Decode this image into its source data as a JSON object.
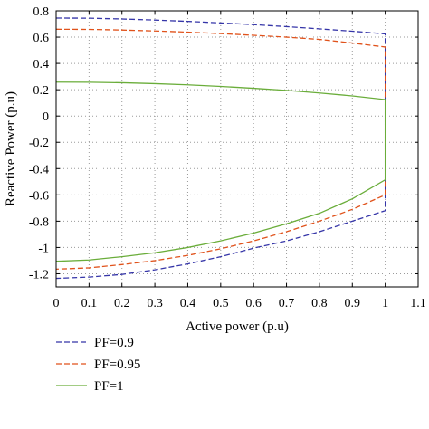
{
  "chart_data": {
    "type": "line",
    "xlabel": "Active power (p.u)",
    "ylabel": "Reactive Power (p.u)",
    "xlim": [
      0,
      1.1
    ],
    "ylim": [
      -1.3,
      0.8
    ],
    "xticks": [
      0,
      0.1,
      0.2,
      0.3,
      0.4,
      0.5,
      0.6,
      0.7,
      0.8,
      0.9,
      1,
      1.1
    ],
    "xtick_labels": [
      "0",
      "0.1",
      "0.2",
      "0.3",
      "0.4",
      "0.5",
      "0.6",
      "0.7",
      "0.8",
      "0.9",
      "1",
      "1.1"
    ],
    "yticks": [
      -1.2,
      -1,
      -0.8,
      -0.6,
      -0.4,
      -0.2,
      0,
      0.2,
      0.4,
      0.6,
      0.8
    ],
    "ytick_labels": [
      "-1.2",
      "-1",
      "-0.8",
      "-0.6",
      "-0.4",
      "-0.2",
      "0",
      "0.2",
      "0.4",
      "0.6",
      "0.8"
    ],
    "grid": true,
    "legend_position": "bottom-left-outside",
    "series": [
      {
        "name": "PF=0.9",
        "color": "#3535a8",
        "dash": "dashed",
        "upper": {
          "x": [
            0,
            0.1,
            0.2,
            0.3,
            0.4,
            0.5,
            0.6,
            0.7,
            0.8,
            0.9,
            1.0
          ],
          "y": [
            0.745,
            0.744,
            0.738,
            0.73,
            0.72,
            0.708,
            0.695,
            0.68,
            0.663,
            0.645,
            0.625
          ]
        },
        "lower": {
          "x": [
            0,
            0.1,
            0.2,
            0.3,
            0.4,
            0.5,
            0.6,
            0.7,
            0.8,
            0.9,
            1.0
          ],
          "y": [
            -1.235,
            -1.225,
            -1.205,
            -1.17,
            -1.125,
            -1.07,
            -1.005,
            -0.95,
            -0.88,
            -0.8,
            -0.72
          ]
        },
        "vertical_x": 1.0
      },
      {
        "name": "PF=0.95",
        "color": "#e0521b",
        "dash": "dashed",
        "upper": {
          "x": [
            0,
            0.1,
            0.2,
            0.3,
            0.4,
            0.5,
            0.6,
            0.7,
            0.8,
            0.9,
            1.0
          ],
          "y": [
            0.66,
            0.659,
            0.654,
            0.647,
            0.638,
            0.627,
            0.614,
            0.6,
            0.583,
            0.555,
            0.525
          ]
        },
        "lower": {
          "x": [
            0,
            0.1,
            0.2,
            0.3,
            0.4,
            0.5,
            0.6,
            0.7,
            0.8,
            0.9,
            1.0
          ],
          "y": [
            -1.165,
            -1.155,
            -1.13,
            -1.1,
            -1.06,
            -1.01,
            -0.95,
            -0.88,
            -0.8,
            -0.71,
            -0.6
          ]
        },
        "vertical_x": 1.0
      },
      {
        "name": "PF=1",
        "color": "#6aad3a",
        "dash": "solid",
        "upper": {
          "x": [
            0,
            0.1,
            0.2,
            0.3,
            0.4,
            0.5,
            0.6,
            0.7,
            0.8,
            0.9,
            1.0
          ],
          "y": [
            0.258,
            0.257,
            0.253,
            0.246,
            0.237,
            0.225,
            0.211,
            0.195,
            0.175,
            0.153,
            0.125
          ]
        },
        "lower": {
          "x": [
            0,
            0.1,
            0.2,
            0.3,
            0.4,
            0.5,
            0.6,
            0.7,
            0.8,
            0.9,
            1.0
          ],
          "y": [
            -1.105,
            -1.095,
            -1.07,
            -1.04,
            -1.0,
            -0.95,
            -0.89,
            -0.82,
            -0.74,
            -0.63,
            -0.485
          ]
        },
        "vertical_x": 1.0
      }
    ]
  }
}
